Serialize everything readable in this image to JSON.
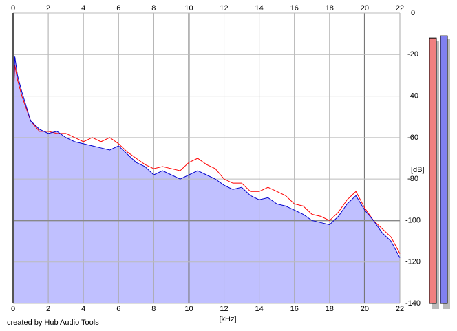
{
  "chart_data": {
    "type": "spectrum",
    "x_label": "[kHz]",
    "y_label": "[dB]",
    "credit": "created by Hub Audio Tools",
    "x": [
      0,
      0.1,
      0.25,
      0.5,
      1,
      1.5,
      2,
      2.5,
      3,
      3.5,
      4,
      4.5,
      5,
      5.5,
      6,
      6.5,
      7,
      7.5,
      8,
      8.5,
      9,
      9.5,
      10,
      10.5,
      11,
      11.5,
      12,
      12.5,
      13,
      13.5,
      14,
      14.5,
      15,
      15.5,
      16,
      16.5,
      17,
      17.5,
      18,
      18.5,
      19,
      19.5,
      20,
      20.5,
      21,
      21.5,
      22
    ],
    "series": [
      {
        "color": "#ff0000",
        "values": [
          -45,
          -25,
          -32,
          -40,
          -52,
          -57,
          -57,
          -58,
          -58,
          -60,
          -62,
          -60,
          -62,
          -60,
          -63,
          -67,
          -70,
          -73,
          -75,
          -74,
          -75,
          -76,
          -72,
          -70,
          -73,
          -75,
          -80,
          -82,
          -82,
          -86,
          -86,
          -84,
          -86,
          -88,
          -92,
          -93,
          -97,
          -98,
          -100,
          -96,
          -90,
          -86,
          -94,
          -100,
          -104,
          -108,
          -116
        ]
      },
      {
        "color": "#0000cc",
        "values": [
          -46,
          -21,
          -30,
          -38,
          -52,
          -56,
          -58,
          -57,
          -60,
          -62,
          -63,
          -64,
          -65,
          -66,
          -64,
          -68,
          -72,
          -74,
          -78,
          -76,
          -78,
          -80,
          -78,
          -76,
          -78,
          -80,
          -83,
          -85,
          -84,
          -88,
          -90,
          -89,
          -92,
          -93,
          -95,
          -97,
          -100,
          -101,
          -102,
          -98,
          -92,
          -88,
          -95,
          -100,
          -106,
          -110,
          -118
        ]
      }
    ],
    "fill_color": "#c0c0ff",
    "xlim": [
      0,
      22
    ],
    "xticks": [
      0,
      2,
      4,
      6,
      8,
      10,
      12,
      14,
      16,
      18,
      20,
      22
    ],
    "ylim": [
      -140,
      0
    ],
    "yticks": [
      0,
      -20,
      -40,
      -60,
      -80,
      -100,
      -120,
      -140
    ],
    "grid": true,
    "meters": [
      {
        "color": "#f08080",
        "value": -12
      },
      {
        "color": "#8080f0",
        "value": -11
      }
    ]
  }
}
